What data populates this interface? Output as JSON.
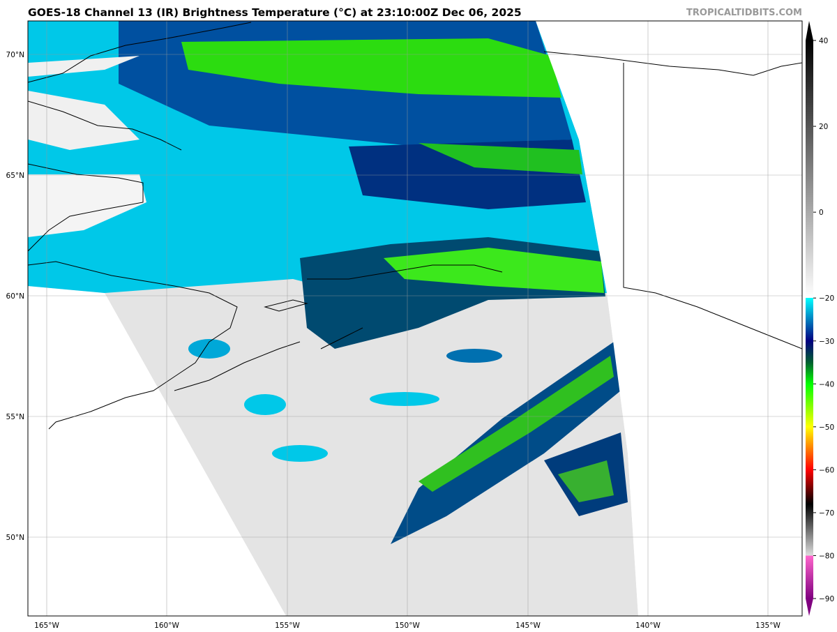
{
  "title": "GOES-18 Channel 13 (IR) Brightness Temperature (°C) at 23:10:00Z Dec 06, 2025",
  "credit": "TROPICALTIDBITS.COM",
  "map": {
    "lat_labels": [
      "70°N",
      "65°N",
      "60°N",
      "55°N",
      "50°N"
    ],
    "lon_labels": [
      "165°W",
      "160°W",
      "155°W",
      "150°W",
      "145°W",
      "140°W",
      "135°W"
    ]
  },
  "colorbar": {
    "unit": "°C",
    "range": [
      -90,
      40
    ],
    "tick_labels": [
      "40",
      "20",
      "0",
      "−20",
      "−30",
      "−40",
      "−50",
      "−60",
      "−70",
      "−80",
      "−90"
    ],
    "stops": [
      {
        "value": 40,
        "color": "#000000"
      },
      {
        "value": -20,
        "color": "#ffffff"
      },
      {
        "value": -20,
        "color": "#00ffff"
      },
      {
        "value": -30,
        "color": "#000080"
      },
      {
        "value": -35,
        "color": "#006030"
      },
      {
        "value": -40,
        "color": "#00ff00"
      },
      {
        "value": -50,
        "color": "#ffff00"
      },
      {
        "value": -55,
        "color": "#ff8000"
      },
      {
        "value": -60,
        "color": "#ff0000"
      },
      {
        "value": -68,
        "color": "#000000"
      },
      {
        "value": -80,
        "color": "#dddddd"
      },
      {
        "value": -80,
        "color": "#ff66cc"
      },
      {
        "value": -90,
        "color": "#800080"
      }
    ]
  }
}
